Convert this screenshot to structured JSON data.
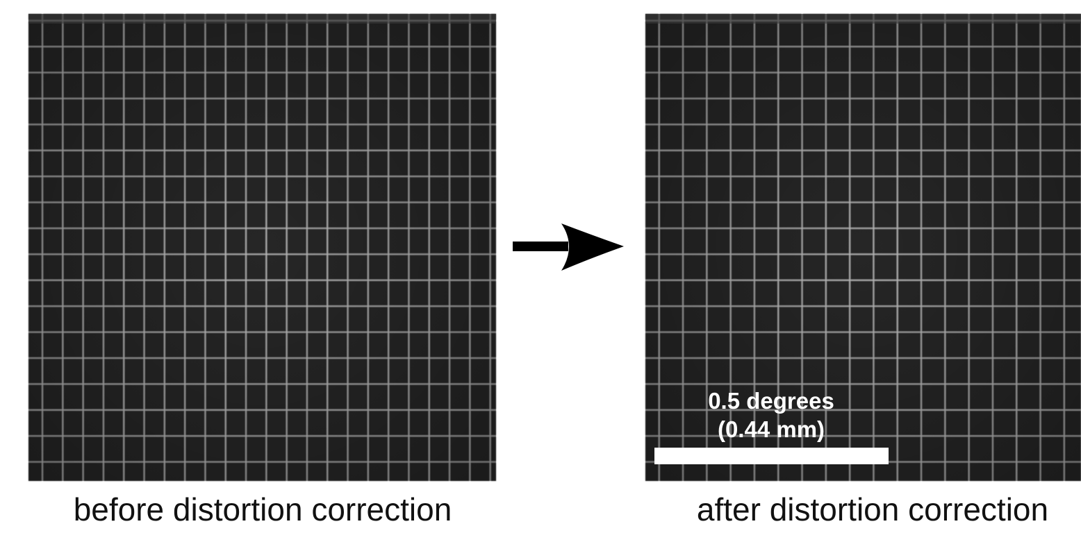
{
  "panels": [
    {
      "caption": "before distortion correction"
    },
    {
      "caption": "after distortion correction",
      "scale_bar": {
        "label_lines": [
          "0.5 degrees",
          "(0.44 mm)"
        ]
      }
    }
  ]
}
